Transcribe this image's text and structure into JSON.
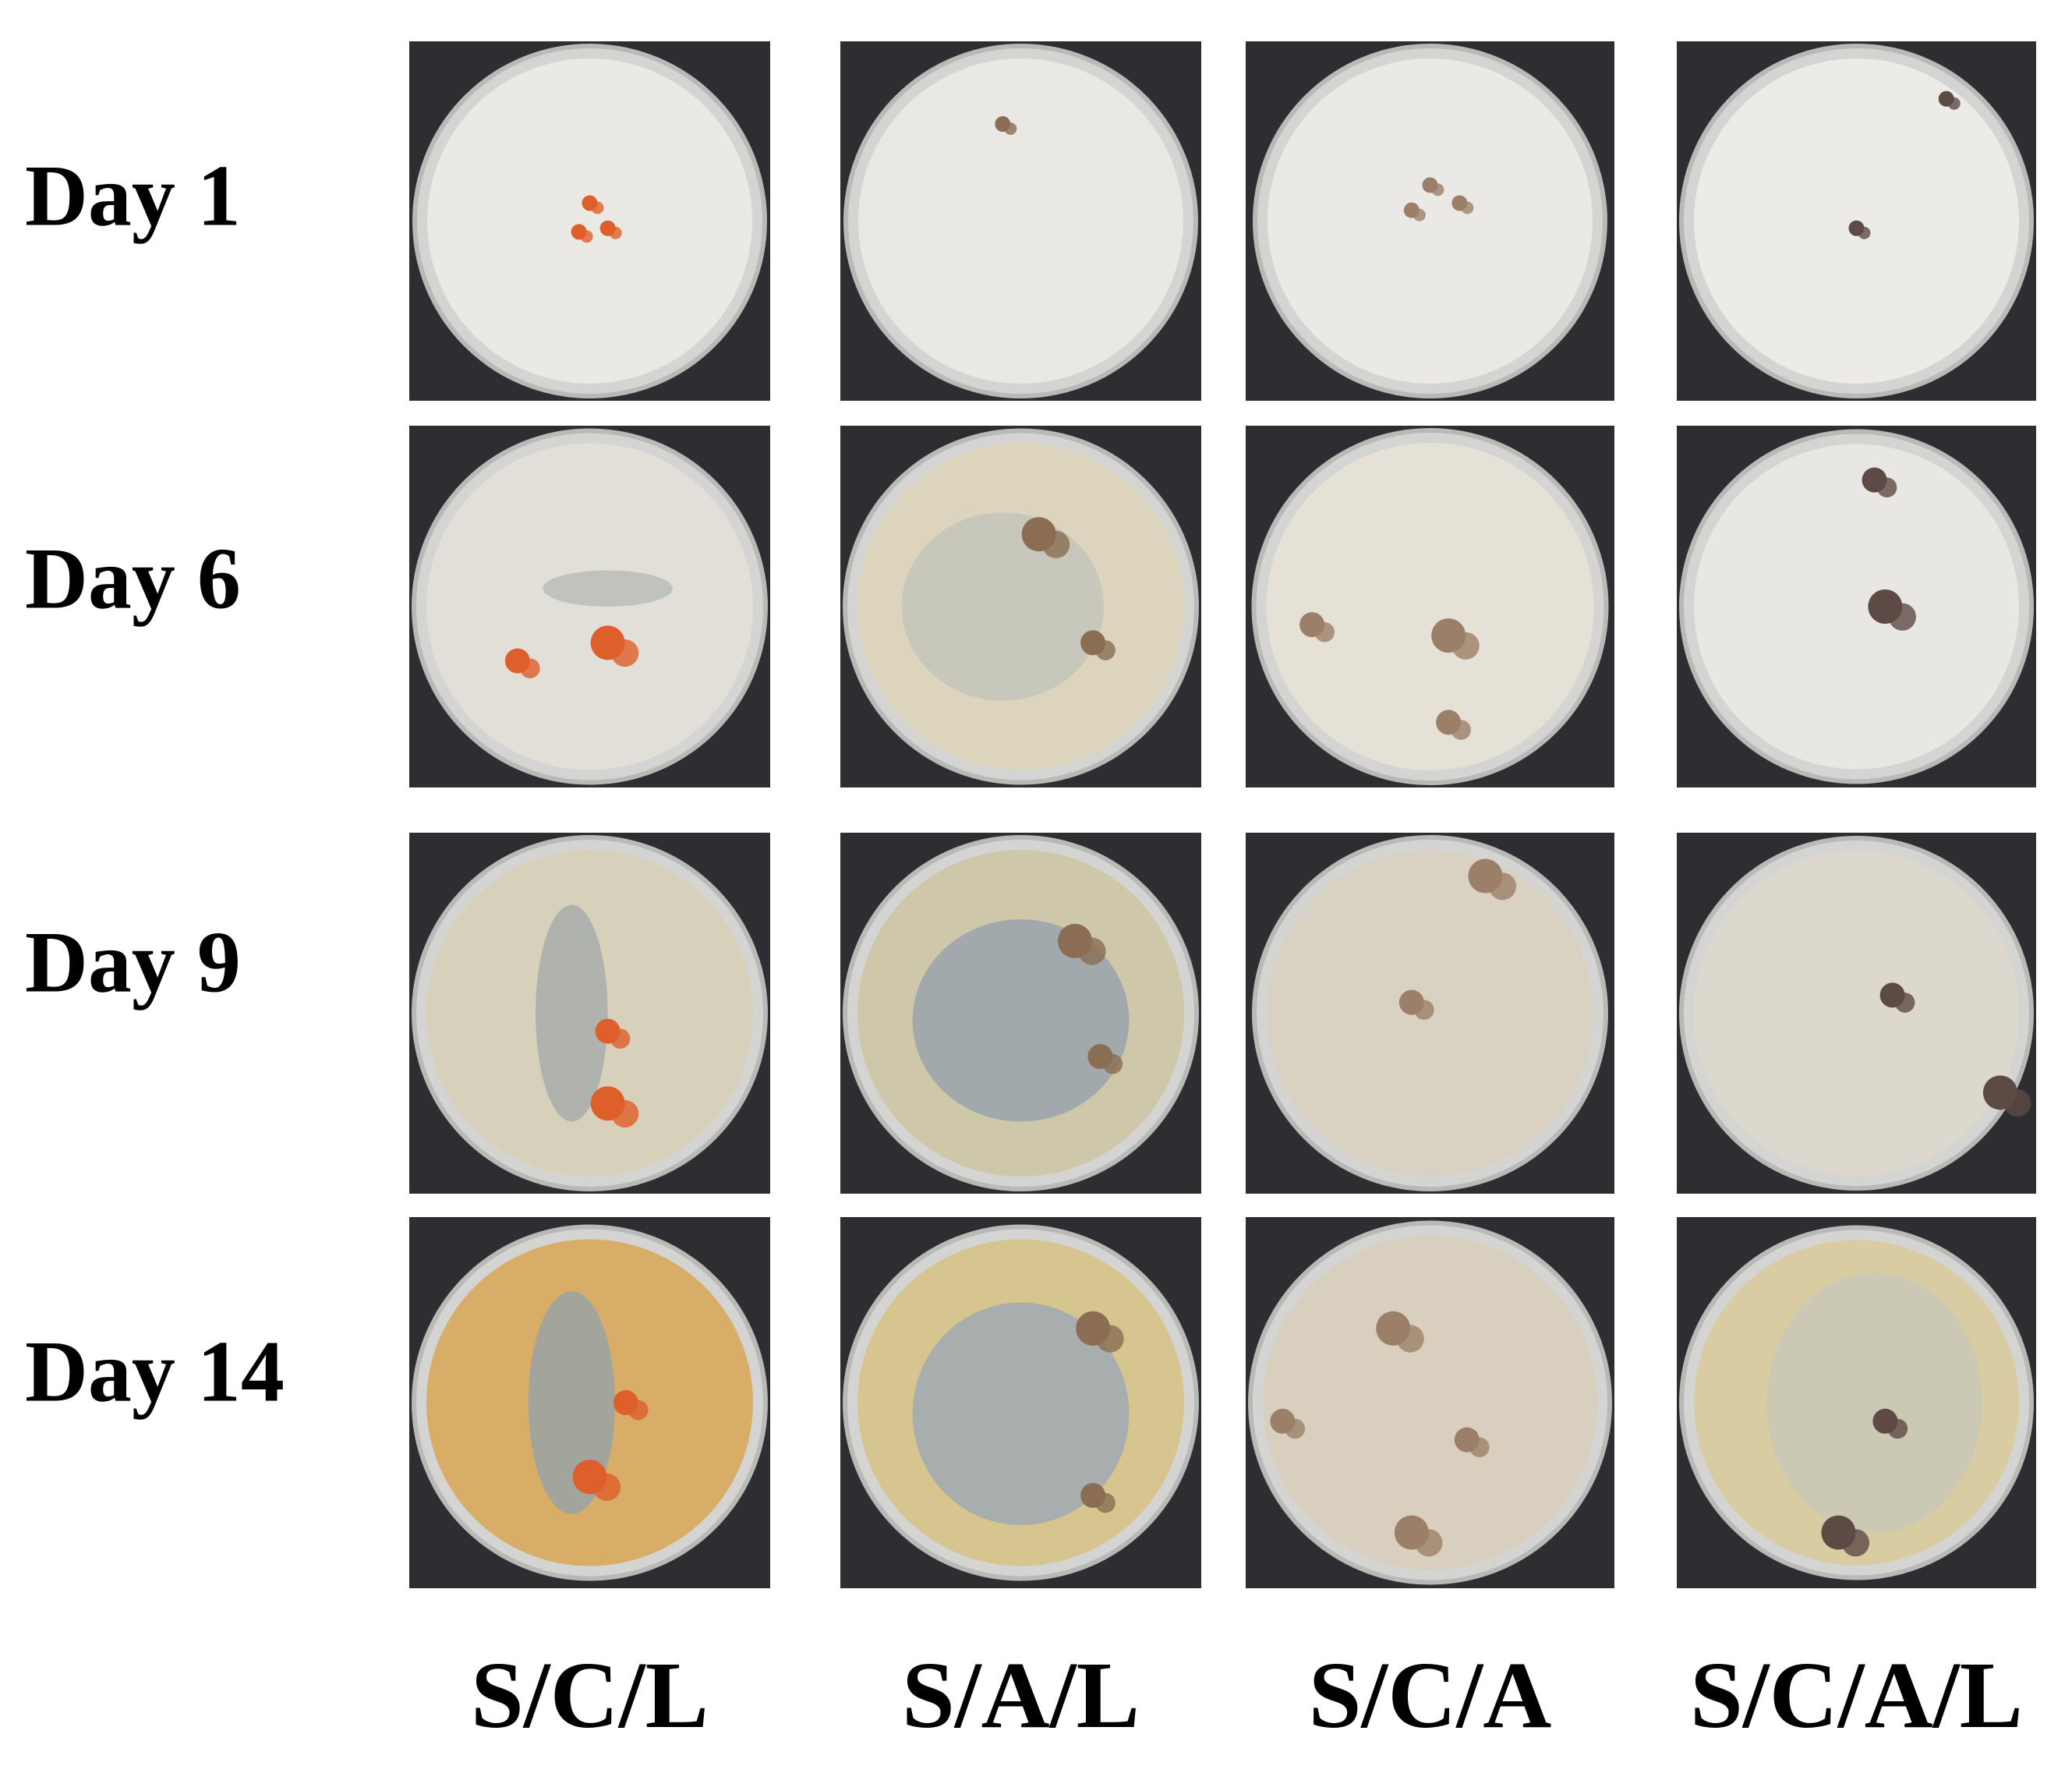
{
  "row_labels": [
    "Day 1",
    "Day 6",
    "Day 9",
    "Day 14"
  ],
  "column_labels": [
    "S/C/L",
    "S/A/L",
    "S/C/A",
    "S/C/A/L"
  ]
}
